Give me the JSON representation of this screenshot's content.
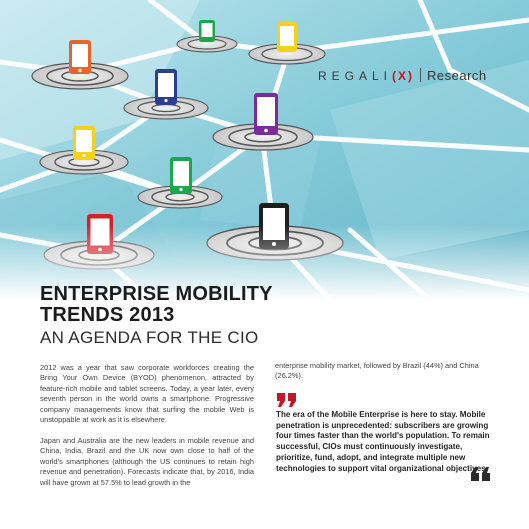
{
  "brand": {
    "logo_text": "REGALI",
    "logo_x": "(X)",
    "research_label": "Research"
  },
  "title": {
    "line1": "ENTERPRISE MOBILITY",
    "line2": "TRENDS 2013",
    "subtitle": "AN AGENDA FOR THE CIO"
  },
  "body": {
    "paragraph1": "2012 was a year that saw corporate workforces creating the Bring Your Own Device (BYOD) phenomenon, attracted by feature-rich mobile and tablet screens. Today, a year later, every seventh person in the world owns a smartphone. Progressive company managements know that surfing the mobile Web is unstoppable at work as it is elsewhere.",
    "paragraph2": "Japan and Australia are the new leaders in mobile revenue and China, India, Brazil and the UK now own close to half of the world's smartphones (although the US continues to retain high revenue and penetration). Forecasts indicate that, by 2016, India will have grown at 57.5% to lead growth in the",
    "paragraph3": "enterprise mobility market, followed by Brazil (44%) and China (26.2%)."
  },
  "pull_quote": {
    "text": "The era of the Mobile Enterprise is here to stay. Mobile penetration is unprecedented: subscribers are growing four times faster than the world's population. To remain successful, CIOs must continuously investigate, prioritize, fund, adopt, and integrate multiple new technologies to support vital organizational objectives.",
    "accent_color": "#c0172b"
  },
  "colors": {
    "phone_orange": "#e8642c",
    "phone_green": "#1aa84a",
    "phone_yellow": "#f2d21a",
    "phone_navy": "#2c3e8f",
    "phone_purple": "#7a2d9a",
    "phone_red": "#d3232a",
    "phone_black": "#1e1e1e"
  }
}
